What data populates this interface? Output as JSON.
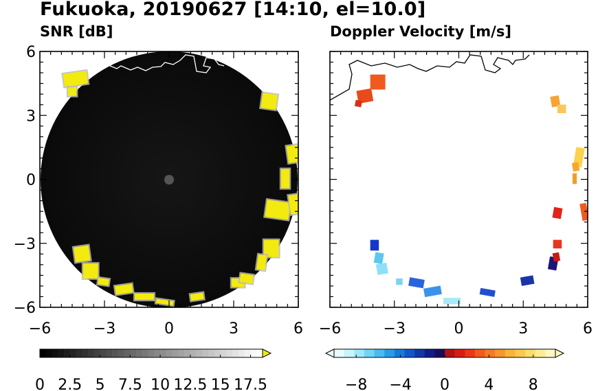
{
  "title": "Fukuoka, 20190627 [14:10, el=10.0]",
  "colors": {
    "snr_disk": "#0d0d0d",
    "snr_echo": "#f3ea10",
    "snr_echo_edge": "#b8b8b8",
    "coastline_snr": "#ffffff",
    "coastline_vel": "#000000"
  },
  "chart_data": [
    {
      "type": "heatmap",
      "name": "snr",
      "title": "SNR [dB]",
      "x_ticks": [
        "−6",
        "−3",
        "0",
        "3",
        "6"
      ],
      "y_ticks": [
        "6",
        "3",
        "0",
        "−3",
        "−6"
      ],
      "xlim": [
        -6,
        6
      ],
      "ylim": [
        -6,
        6
      ],
      "colorbar_labels": [
        "0",
        "2.5",
        "5",
        "7.5",
        "10",
        "12.5",
        "15",
        "17.5"
      ],
      "colorbar_range": [
        0,
        18.5
      ],
      "colorbar_extend": "max"
    },
    {
      "type": "heatmap",
      "name": "doppler",
      "title": "Doppler Velocity [m/s]",
      "x_ticks": [
        "−6",
        "−3",
        "0",
        "3",
        "6"
      ],
      "xlim": [
        -6,
        6
      ],
      "ylim": [
        -6,
        6
      ],
      "colorbar_labels": [
        "−8",
        "−4",
        "0",
        "4",
        "8"
      ],
      "colorbar_range": [
        -10,
        10
      ],
      "colorbar_extend": "both"
    }
  ]
}
